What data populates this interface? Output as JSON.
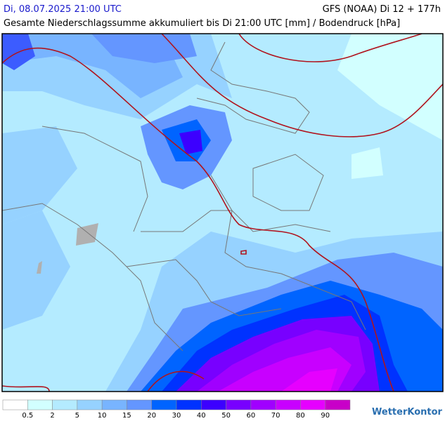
{
  "header": {
    "valid_time": "Di, 08.07.2025 21:00 UTC",
    "model": "GFS (NOAA) Di 12 + 177h",
    "subtitle": "Gesamte Niederschlagssumme akkumuliert bis Di 21:00 UTC [mm] / Bodendruck [hPa]"
  },
  "legend": {
    "labels": [
      0.5,
      2,
      5,
      10,
      15,
      20,
      30,
      40,
      50,
      60,
      70,
      80,
      90
    ],
    "colors": [
      "#ffffff",
      "#d2ffff",
      "#b4ebff",
      "#96d2ff",
      "#78b4ff",
      "#6496ff",
      "#0064ff",
      "#0032ff",
      "#3c00ff",
      "#7800ff",
      "#a000ff",
      "#c800ff",
      "#e600ff",
      "#c800c8"
    ]
  },
  "brand": "WetterKontor"
}
